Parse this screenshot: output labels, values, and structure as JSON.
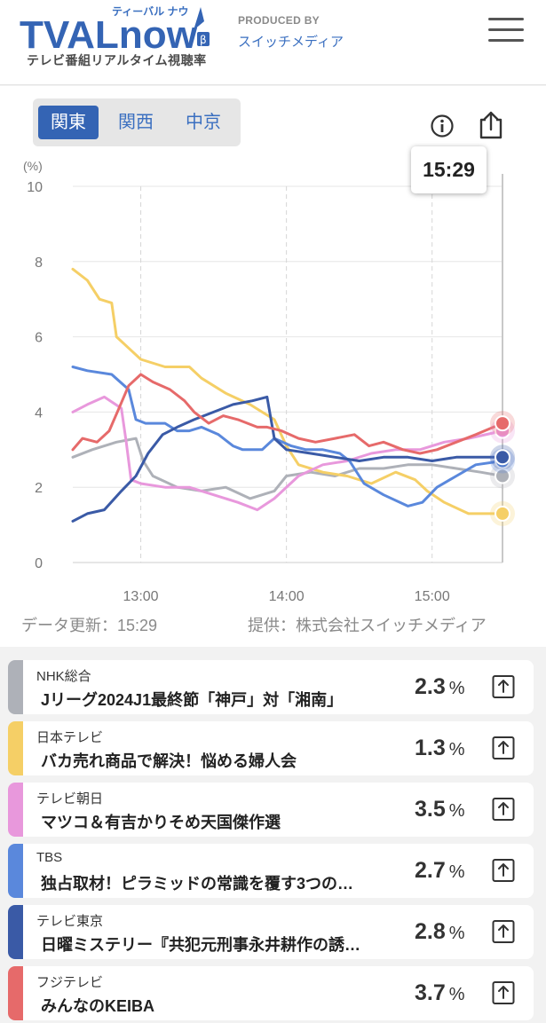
{
  "header": {
    "logo_text": "TVALnow",
    "logo_kana": "ティーバル ナウ",
    "logo_beta": "β",
    "logo_subtitle": "テレビ番組リアルタイム視聴率",
    "produced_by": "PRODUCED BY",
    "company": "スイッチメディア"
  },
  "regions": [
    {
      "label": "関東",
      "active": true
    },
    {
      "label": "関西",
      "active": false
    },
    {
      "label": "中京",
      "active": false
    }
  ],
  "tooltip_time": "15:29",
  "chart_data": {
    "type": "line",
    "y_unit_label": "(%)",
    "ylim": [
      0,
      10
    ],
    "y_ticks": [
      "0",
      "2",
      "4",
      "6",
      "8",
      "10"
    ],
    "x_ticks": [
      "13:00",
      "14:00",
      "15:00"
    ],
    "x_tick_minutes": [
      780,
      840,
      900
    ],
    "xlim_minutes": [
      752,
      929
    ],
    "grid": true,
    "series": [
      {
        "name": "NHK総合",
        "color": "#aeb1b8",
        "points": [
          [
            752,
            2.8
          ],
          [
            760,
            3.0
          ],
          [
            770,
            3.2
          ],
          [
            778,
            3.3
          ],
          [
            781,
            2.7
          ],
          [
            785,
            2.3
          ],
          [
            795,
            2.0
          ],
          [
            805,
            1.9
          ],
          [
            815,
            2.0
          ],
          [
            825,
            1.7
          ],
          [
            830,
            1.8
          ],
          [
            835,
            1.9
          ],
          [
            840,
            2.3
          ],
          [
            850,
            2.4
          ],
          [
            860,
            2.3
          ],
          [
            870,
            2.5
          ],
          [
            880,
            2.5
          ],
          [
            890,
            2.6
          ],
          [
            900,
            2.6
          ],
          [
            910,
            2.5
          ],
          [
            920,
            2.4
          ],
          [
            929,
            2.3
          ]
        ]
      },
      {
        "name": "日本テレビ",
        "color": "#f5cf66",
        "points": [
          [
            752,
            7.8
          ],
          [
            758,
            7.5
          ],
          [
            763,
            7.0
          ],
          [
            768,
            6.9
          ],
          [
            770,
            6.0
          ],
          [
            775,
            5.7
          ],
          [
            780,
            5.4
          ],
          [
            790,
            5.2
          ],
          [
            800,
            5.2
          ],
          [
            805,
            4.9
          ],
          [
            815,
            4.5
          ],
          [
            825,
            4.2
          ],
          [
            835,
            3.8
          ],
          [
            840,
            3.1
          ],
          [
            845,
            2.6
          ],
          [
            855,
            2.4
          ],
          [
            865,
            2.3
          ],
          [
            875,
            2.1
          ],
          [
            885,
            2.4
          ],
          [
            893,
            2.2
          ],
          [
            898,
            1.9
          ],
          [
            905,
            1.6
          ],
          [
            915,
            1.3
          ],
          [
            929,
            1.3
          ]
        ]
      },
      {
        "name": "テレビ朝日",
        "color": "#e898dc",
        "points": [
          [
            752,
            4.0
          ],
          [
            758,
            4.2
          ],
          [
            765,
            4.4
          ],
          [
            772,
            4.1
          ],
          [
            774,
            3.2
          ],
          [
            776,
            2.2
          ],
          [
            780,
            2.1
          ],
          [
            790,
            2.0
          ],
          [
            800,
            2.0
          ],
          [
            810,
            1.8
          ],
          [
            820,
            1.6
          ],
          [
            828,
            1.4
          ],
          [
            835,
            1.7
          ],
          [
            845,
            2.3
          ],
          [
            855,
            2.6
          ],
          [
            865,
            2.7
          ],
          [
            875,
            2.9
          ],
          [
            885,
            3.0
          ],
          [
            895,
            3.0
          ],
          [
            905,
            3.2
          ],
          [
            915,
            3.3
          ],
          [
            929,
            3.5
          ]
        ]
      },
      {
        "name": "TBS",
        "color": "#5a88dc",
        "points": [
          [
            752,
            5.2
          ],
          [
            758,
            5.1
          ],
          [
            768,
            5.0
          ],
          [
            775,
            4.6
          ],
          [
            778,
            3.8
          ],
          [
            782,
            3.7
          ],
          [
            790,
            3.7
          ],
          [
            795,
            3.5
          ],
          [
            800,
            3.5
          ],
          [
            805,
            3.6
          ],
          [
            812,
            3.4
          ],
          [
            818,
            3.1
          ],
          [
            822,
            3.0
          ],
          [
            830,
            3.0
          ],
          [
            835,
            3.3
          ],
          [
            842,
            3.1
          ],
          [
            848,
            3.0
          ],
          [
            855,
            3.0
          ],
          [
            862,
            2.9
          ],
          [
            866,
            2.7
          ],
          [
            872,
            2.1
          ],
          [
            880,
            1.8
          ],
          [
            890,
            1.5
          ],
          [
            896,
            1.6
          ],
          [
            902,
            2.0
          ],
          [
            910,
            2.3
          ],
          [
            918,
            2.6
          ],
          [
            929,
            2.7
          ]
        ]
      },
      {
        "name": "テレビ東京",
        "color": "#3a5aa6",
        "points": [
          [
            752,
            1.1
          ],
          [
            758,
            1.3
          ],
          [
            765,
            1.4
          ],
          [
            772,
            1.9
          ],
          [
            778,
            2.3
          ],
          [
            783,
            2.9
          ],
          [
            789,
            3.4
          ],
          [
            795,
            3.6
          ],
          [
            802,
            3.8
          ],
          [
            810,
            4.0
          ],
          [
            818,
            4.2
          ],
          [
            826,
            4.3
          ],
          [
            832,
            4.4
          ],
          [
            835,
            3.3
          ],
          [
            840,
            3.0
          ],
          [
            850,
            2.9
          ],
          [
            860,
            2.8
          ],
          [
            870,
            2.7
          ],
          [
            880,
            2.8
          ],
          [
            890,
            2.8
          ],
          [
            900,
            2.7
          ],
          [
            910,
            2.8
          ],
          [
            920,
            2.8
          ],
          [
            929,
            2.8
          ]
        ]
      },
      {
        "name": "フジテレビ",
        "color": "#e66a6a",
        "points": [
          [
            752,
            3.0
          ],
          [
            756,
            3.3
          ],
          [
            762,
            3.2
          ],
          [
            767,
            3.5
          ],
          [
            771,
            4.1
          ],
          [
            775,
            4.7
          ],
          [
            780,
            5.0
          ],
          [
            785,
            4.8
          ],
          [
            792,
            4.6
          ],
          [
            798,
            4.3
          ],
          [
            802,
            4.0
          ],
          [
            808,
            3.7
          ],
          [
            814,
            3.9
          ],
          [
            820,
            3.8
          ],
          [
            828,
            3.6
          ],
          [
            832,
            3.6
          ],
          [
            838,
            3.5
          ],
          [
            845,
            3.3
          ],
          [
            852,
            3.2
          ],
          [
            860,
            3.3
          ],
          [
            868,
            3.4
          ],
          [
            874,
            3.1
          ],
          [
            880,
            3.2
          ],
          [
            888,
            3.0
          ],
          [
            895,
            2.9
          ],
          [
            902,
            3.0
          ],
          [
            910,
            3.2
          ],
          [
            918,
            3.4
          ],
          [
            929,
            3.7
          ]
        ]
      }
    ]
  },
  "footer": {
    "updated": "データ更新：15:29",
    "source": "提供：株式会社スイッチメディア"
  },
  "programs": [
    {
      "channel": "NHK総合",
      "title": "Jリーグ2024J1最終節「神戸」対「湘南」",
      "rating": "2.3",
      "unit": "%",
      "color": "#aeb1b8"
    },
    {
      "channel": "日本テレビ",
      "title": "バカ売れ商品で解決！悩める婦人会",
      "rating": "1.3",
      "unit": "%",
      "color": "#f5cf66"
    },
    {
      "channel": "テレビ朝日",
      "title": "マツコ＆有吉かりそめ天国傑作選",
      "rating": "3.5",
      "unit": "%",
      "color": "#e898dc"
    },
    {
      "channel": "TBS",
      "title": "独占取材！ピラミッドの常識を覆す3つの…",
      "rating": "2.7",
      "unit": "%",
      "color": "#5a88dc"
    },
    {
      "channel": "テレビ東京",
      "title": "日曜ミステリー『共犯元刑事永井耕作の誘…",
      "rating": "2.8",
      "unit": "%",
      "color": "#3a5aa6"
    },
    {
      "channel": "フジテレビ",
      "title": "みんなのKEIBA",
      "rating": "3.7",
      "unit": "%",
      "color": "#e66a6a"
    }
  ]
}
